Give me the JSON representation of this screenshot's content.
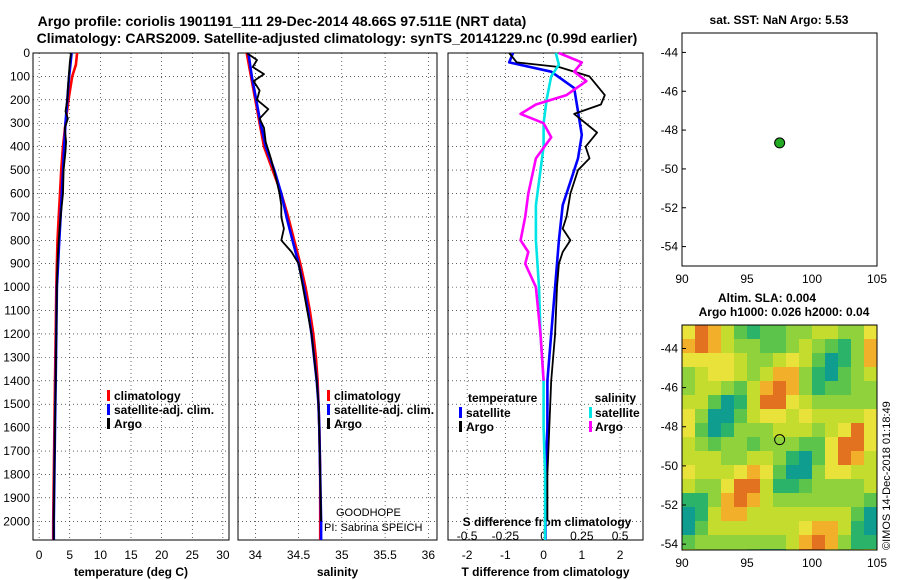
{
  "header": {
    "line1": "Argo profile: coriolis 1901191_111 29-Dec-2014 48.66S 97.511E (NRT data)",
    "line2": "Climatology: CARS2009. Satellite-adjusted climatology: synTS_20141229.nc (0.99d earlier)"
  },
  "colors": {
    "climatology": "#ff0000",
    "satellite": "#0000ff",
    "argo": "#000000",
    "sat_salinity": "#00e5e5",
    "argo_salinity": "#ff00ff",
    "float_marker": "#22aa22"
  },
  "credits": {
    "project": "GOODHOPE",
    "pi": "PI: Sabrina SPEICH"
  },
  "watermark": "©IMOS 14-Dec-2018 01:18:49",
  "chart_data": [
    {
      "type": "line",
      "id": "temperature",
      "xlabel": "temperature (deg C)",
      "ylabel": "",
      "xlim": [
        -1,
        31
      ],
      "ylim": [
        2080,
        0
      ],
      "xticks": [
        0,
        5,
        10,
        15,
        20,
        25,
        30
      ],
      "yticks": [
        0,
        100,
        200,
        300,
        400,
        500,
        600,
        700,
        800,
        900,
        1000,
        1100,
        1200,
        1300,
        1400,
        1500,
        1600,
        1700,
        1800,
        1900,
        2000
      ],
      "grid": true,
      "legend": [
        "climatology",
        "satellite-adj. clim.",
        "Argo"
      ],
      "legend_placement": "lower-right",
      "series": [
        {
          "name": "climatology",
          "color": "#ff0000",
          "points": [
            [
              6.2,
              0
            ],
            [
              6.0,
              50
            ],
            [
              5.4,
              100
            ],
            [
              4.8,
              200
            ],
            [
              4.3,
              300
            ],
            [
              3.9,
              400
            ],
            [
              3.6,
              500
            ],
            [
              3.4,
              600
            ],
            [
              3.2,
              700
            ],
            [
              3.0,
              800
            ],
            [
              2.9,
              900
            ],
            [
              2.8,
              1000
            ],
            [
              2.7,
              1200
            ],
            [
              2.6,
              1400
            ],
            [
              2.5,
              1600
            ],
            [
              2.4,
              1800
            ],
            [
              2.3,
              2000
            ],
            [
              2.3,
              2080
            ]
          ]
        },
        {
          "name": "satellite-adj. clim.",
          "color": "#0000ff",
          "points": [
            [
              5.3,
              0
            ],
            [
              5.1,
              50
            ],
            [
              4.9,
              100
            ],
            [
              4.6,
              200
            ],
            [
              4.3,
              300
            ],
            [
              4.1,
              400
            ],
            [
              3.9,
              500
            ],
            [
              3.7,
              600
            ],
            [
              3.5,
              700
            ],
            [
              3.3,
              800
            ],
            [
              3.1,
              900
            ],
            [
              2.9,
              1000
            ],
            [
              2.8,
              1200
            ],
            [
              2.7,
              1400
            ],
            [
              2.6,
              1600
            ],
            [
              2.5,
              1800
            ],
            [
              2.4,
              2000
            ],
            [
              2.4,
              2080
            ]
          ]
        },
        {
          "name": "Argo",
          "color": "#000000",
          "points": [
            [
              5.2,
              0
            ],
            [
              5.0,
              40
            ],
            [
              4.9,
              80
            ],
            [
              4.7,
              150
            ],
            [
              4.6,
              200
            ],
            [
              4.3,
              250
            ],
            [
              4.7,
              280
            ],
            [
              4.2,
              320
            ],
            [
              4.4,
              380
            ],
            [
              4.3,
              420
            ],
            [
              4.0,
              500
            ],
            [
              3.9,
              600
            ],
            [
              3.7,
              650
            ],
            [
              3.5,
              700
            ],
            [
              3.2,
              800
            ],
            [
              3.0,
              900
            ],
            [
              2.9,
              1000
            ],
            [
              2.8,
              1200
            ],
            [
              2.7,
              1400
            ],
            [
              2.6,
              1600
            ],
            [
              2.5,
              1800
            ],
            [
              2.4,
              2000
            ],
            [
              2.4,
              2080
            ]
          ]
        }
      ]
    },
    {
      "type": "line",
      "id": "salinity",
      "xlabel": "salinity",
      "ylabel": "",
      "xlim": [
        33.8,
        36.1
      ],
      "ylim": [
        2080,
        0
      ],
      "xticks": [
        34,
        34.5,
        35,
        35.5,
        36
      ],
      "grid": true,
      "legend": [
        "climatology",
        "satellite-adj. clim.",
        "Argo"
      ],
      "legend_placement": "lower-right",
      "series": [
        {
          "name": "climatology",
          "color": "#ff0000",
          "points": [
            [
              33.9,
              0
            ],
            [
              33.95,
              100
            ],
            [
              34.0,
              200
            ],
            [
              34.05,
              300
            ],
            [
              34.1,
              400
            ],
            [
              34.2,
              500
            ],
            [
              34.3,
              600
            ],
            [
              34.38,
              700
            ],
            [
              34.45,
              800
            ],
            [
              34.52,
              900
            ],
            [
              34.58,
              1000
            ],
            [
              34.63,
              1100
            ],
            [
              34.67,
              1200
            ],
            [
              34.7,
              1300
            ],
            [
              34.72,
              1400
            ],
            [
              34.73,
              1500
            ],
            [
              34.74,
              1600
            ],
            [
              34.75,
              1800
            ],
            [
              34.75,
              2000
            ],
            [
              34.75,
              2080
            ]
          ]
        },
        {
          "name": "satellite-adj. clim.",
          "color": "#0000ff",
          "points": [
            [
              33.92,
              0
            ],
            [
              33.96,
              100
            ],
            [
              34.01,
              200
            ],
            [
              34.06,
              300
            ],
            [
              34.12,
              400
            ],
            [
              34.22,
              500
            ],
            [
              34.3,
              600
            ],
            [
              34.36,
              700
            ],
            [
              34.43,
              800
            ],
            [
              34.5,
              900
            ],
            [
              34.56,
              1000
            ],
            [
              34.61,
              1100
            ],
            [
              34.65,
              1200
            ],
            [
              34.68,
              1300
            ],
            [
              34.71,
              1400
            ],
            [
              34.73,
              1500
            ],
            [
              34.74,
              1600
            ],
            [
              34.75,
              1800
            ],
            [
              34.76,
              2000
            ],
            [
              34.76,
              2080
            ]
          ]
        },
        {
          "name": "Argo",
          "color": "#000000",
          "points": [
            [
              33.9,
              0
            ],
            [
              34.02,
              30
            ],
            [
              33.97,
              60
            ],
            [
              34.1,
              90
            ],
            [
              33.98,
              120
            ],
            [
              34.05,
              160
            ],
            [
              34.02,
              200
            ],
            [
              34.15,
              240
            ],
            [
              34.05,
              280
            ],
            [
              34.1,
              320
            ],
            [
              34.12,
              380
            ],
            [
              34.18,
              450
            ],
            [
              34.25,
              550
            ],
            [
              34.28,
              600
            ],
            [
              34.3,
              650
            ],
            [
              34.3,
              700
            ],
            [
              34.33,
              750
            ],
            [
              34.3,
              800
            ],
            [
              34.42,
              850
            ],
            [
              34.5,
              900
            ],
            [
              34.55,
              1000
            ],
            [
              34.6,
              1100
            ],
            [
              34.65,
              1200
            ],
            [
              34.68,
              1300
            ],
            [
              34.71,
              1400
            ],
            [
              34.73,
              1500
            ],
            [
              34.74,
              1600
            ],
            [
              34.75,
              1800
            ],
            [
              34.76,
              2000
            ]
          ]
        }
      ]
    },
    {
      "type": "line",
      "id": "difference",
      "xlabel": "T difference from climatology",
      "top_xlabel": "S difference from climatology",
      "ylabel": "",
      "xlim": [
        -2.5,
        2.6
      ],
      "ylim": [
        2080,
        0
      ],
      "xticks": [
        -2,
        -1,
        0,
        1,
        2
      ],
      "top_xticks": [
        -0.5,
        -0.25,
        0,
        0.25,
        0.5
      ],
      "top_xticklabels": [
        "-0.5",
        "-0.25",
        "0",
        "0.25",
        "0.5"
      ],
      "grid": true,
      "legend_left_title": "temperature",
      "legend_right_title": "salinity",
      "legend_left": [
        "satellite",
        "Argo"
      ],
      "legend_right": [
        "satellite",
        "Argo"
      ],
      "legend_placement": "lower",
      "series": [
        {
          "name": "T satellite",
          "color": "#0000ff",
          "points": [
            [
              -0.8,
              0
            ],
            [
              -0.9,
              40
            ],
            [
              0.2,
              80
            ],
            [
              0.8,
              150
            ],
            [
              0.9,
              250
            ],
            [
              1.0,
              350
            ],
            [
              0.9,
              450
            ],
            [
              0.7,
              550
            ],
            [
              0.5,
              650
            ],
            [
              0.4,
              800
            ],
            [
              0.3,
              1000
            ],
            [
              0.2,
              1200
            ],
            [
              0.1,
              1400
            ],
            [
              0.1,
              1600
            ],
            [
              0.05,
              1800
            ],
            [
              0.05,
              2000
            ],
            [
              0.05,
              2080
            ]
          ]
        },
        {
          "name": "T Argo",
          "color": "#000000",
          "points": [
            [
              -0.9,
              0
            ],
            [
              -0.7,
              40
            ],
            [
              0.4,
              60
            ],
            [
              1.2,
              100
            ],
            [
              1.6,
              180
            ],
            [
              1.5,
              220
            ],
            [
              0.8,
              260
            ],
            [
              1.1,
              300
            ],
            [
              1.4,
              340
            ],
            [
              1.1,
              400
            ],
            [
              1.2,
              450
            ],
            [
              0.9,
              500
            ],
            [
              0.7,
              600
            ],
            [
              0.6,
              700
            ],
            [
              0.5,
              750
            ],
            [
              0.7,
              800
            ],
            [
              0.5,
              850
            ],
            [
              0.4,
              900
            ],
            [
              0.35,
              1000
            ],
            [
              0.3,
              1200
            ],
            [
              0.2,
              1400
            ],
            [
              0.15,
              1600
            ],
            [
              0.1,
              1800
            ],
            [
              0.1,
              2000
            ]
          ]
        },
        {
          "name": "S satellite",
          "color": "#00e5e5",
          "points": [
            [
              0.08,
              0
            ],
            [
              0.1,
              50
            ],
            [
              0.05,
              100
            ],
            [
              0.02,
              200
            ],
            [
              0.0,
              300
            ],
            [
              0.0,
              400
            ],
            [
              -0.02,
              500
            ],
            [
              -0.05,
              650
            ],
            [
              -0.05,
              800
            ],
            [
              -0.03,
              1000
            ],
            [
              -0.02,
              1200
            ],
            [
              0.0,
              1400
            ],
            [
              0.0,
              1600
            ],
            [
              0.01,
              1800
            ],
            [
              0.01,
              2000
            ],
            [
              0.01,
              2080
            ]
          ]
        },
        {
          "name": "S Argo",
          "color": "#ff00ff",
          "points": [
            [
              0.1,
              0
            ],
            [
              0.25,
              40
            ],
            [
              0.2,
              80
            ],
            [
              0.28,
              120
            ],
            [
              0.15,
              180
            ],
            [
              -0.05,
              220
            ],
            [
              -0.15,
              260
            ],
            [
              0.0,
              300
            ],
            [
              0.05,
              360
            ],
            [
              -0.05,
              450
            ],
            [
              -0.1,
              600
            ],
            [
              -0.12,
              700
            ],
            [
              -0.15,
              800
            ],
            [
              -0.1,
              850
            ],
            [
              -0.12,
              900
            ],
            [
              -0.05,
              1000
            ],
            [
              -0.02,
              1200
            ],
            [
              0.0,
              1400
            ]
          ]
        }
      ]
    },
    {
      "type": "scatter",
      "id": "sst-map",
      "title": "sat. SST: NaN Argo: 5.53",
      "xlim": [
        90,
        105
      ],
      "ylim": [
        -55,
        -43
      ],
      "xticks": [
        90,
        95,
        100,
        105
      ],
      "yticks": [
        -44,
        -46,
        -48,
        -50,
        -52,
        -54
      ],
      "points": [
        [
          97.511,
          -48.66
        ]
      ]
    },
    {
      "type": "heatmap",
      "id": "sla-map",
      "title": "Altim. SLA: 0.004",
      "subtitle": "Argo h1000: 0.026 h2000: 0.04",
      "xlim": [
        90,
        105
      ],
      "ylim": [
        -54.3,
        -42.8
      ],
      "xticks": [
        90,
        95,
        100,
        105
      ],
      "yticks": [
        -44,
        -46,
        -48,
        -50,
        -52,
        -54
      ],
      "points": [
        [
          97.511,
          -48.66
        ]
      ]
    }
  ]
}
